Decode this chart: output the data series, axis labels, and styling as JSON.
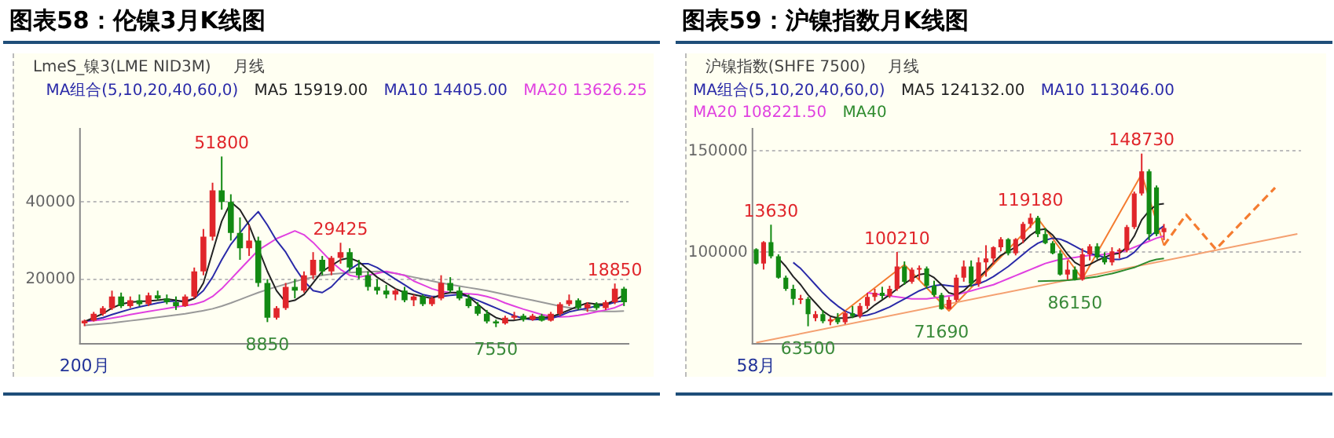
{
  "chart_data": [
    {
      "type": "candlestick",
      "title": "图表58：伦镍3月K线图",
      "legend_title": "MA组合(5,10,20,40,60,0)",
      "legend": "top right",
      "grid": "y",
      "annotations": [
        "LmeS_镍3(LME NID3M)",
        "月线",
        {
          "text": "51800",
          "y": 51800
        },
        {
          "text": "29425",
          "y": 29425
        },
        {
          "text": "18850",
          "y": 18850
        },
        {
          "text": "8850",
          "y": 8850
        },
        {
          "text": "7550",
          "y": 7550
        }
      ],
      "categories": [
        "200月",
        null,
        null,
        null,
        null,
        null,
        null,
        null,
        null,
        null,
        null,
        null,
        null,
        null,
        null,
        null,
        null,
        null,
        null,
        null,
        null,
        null,
        null,
        null,
        null,
        null,
        null,
        null,
        null,
        null,
        null,
        null,
        null,
        null,
        null,
        null,
        null,
        null,
        null,
        null,
        null,
        null,
        null,
        null,
        null,
        null,
        null,
        null,
        null,
        null,
        null,
        null,
        null,
        null,
        null,
        null,
        null,
        null,
        null,
        null
      ],
      "ohlc": [
        [
          8500,
          9500,
          7800,
          9200
        ],
        [
          9200,
          11500,
          9000,
          11000
        ],
        [
          11000,
          13000,
          10500,
          12500
        ],
        [
          12500,
          17000,
          12000,
          15500
        ],
        [
          15500,
          16500,
          12500,
          13000
        ],
        [
          13000,
          15500,
          12500,
          14500
        ],
        [
          14500,
          16000,
          13000,
          13500
        ],
        [
          13500,
          16500,
          13000,
          15800
        ],
        [
          15800,
          17000,
          14500,
          15000
        ],
        [
          15000,
          16000,
          13500,
          14000
        ],
        [
          14000,
          15500,
          12000,
          13000
        ],
        [
          13000,
          16000,
          12800,
          15500
        ],
        [
          15500,
          23000,
          15000,
          22000
        ],
        [
          22000,
          33000,
          21000,
          31000
        ],
        [
          31000,
          45000,
          30000,
          43000
        ],
        [
          43000,
          51800,
          38000,
          40000
        ],
        [
          40000,
          42000,
          30000,
          32000
        ],
        [
          32000,
          36000,
          25000,
          28000
        ],
        [
          28000,
          34000,
          26000,
          30000
        ],
        [
          30000,
          31000,
          18000,
          19000
        ],
        [
          19000,
          20000,
          8850,
          10000
        ],
        [
          10000,
          13000,
          9500,
          12500
        ],
        [
          12500,
          19000,
          12000,
          18000
        ],
        [
          18000,
          20000,
          15000,
          17000
        ],
        [
          17000,
          22000,
          16500,
          21000
        ],
        [
          21000,
          27000,
          20000,
          25000
        ],
        [
          25000,
          26000,
          21000,
          22000
        ],
        [
          22000,
          26000,
          21000,
          25500
        ],
        [
          25500,
          29425,
          24000,
          27000
        ],
        [
          27000,
          28000,
          22000,
          23000
        ],
        [
          23000,
          25000,
          20000,
          21000
        ],
        [
          21000,
          22000,
          17000,
          18000
        ],
        [
          18000,
          20000,
          16000,
          17000
        ],
        [
          17000,
          18500,
          15000,
          16000
        ],
        [
          16000,
          17500,
          14500,
          17000
        ],
        [
          17000,
          18000,
          14000,
          14500
        ],
        [
          14500,
          16000,
          13000,
          15500
        ],
        [
          15500,
          16000,
          13000,
          13500
        ],
        [
          13500,
          15500,
          13000,
          15000
        ],
        [
          15000,
          21000,
          14500,
          19000
        ],
        [
          19000,
          20500,
          16500,
          17000
        ],
        [
          17000,
          18000,
          14500,
          15000
        ],
        [
          15000,
          16000,
          12500,
          13000
        ],
        [
          13000,
          14000,
          10500,
          11000
        ],
        [
          11000,
          12000,
          8500,
          9000
        ],
        [
          9000,
          9500,
          7550,
          8500
        ],
        [
          8500,
          10500,
          8200,
          10000
        ],
        [
          10000,
          11500,
          9500,
          10500
        ],
        [
          10500,
          11000,
          9000,
          9500
        ],
        [
          9500,
          11000,
          9200,
          10500
        ],
        [
          10500,
          11000,
          9000,
          9200
        ],
        [
          9200,
          11500,
          9000,
          11000
        ],
        [
          11000,
          14000,
          10500,
          13500
        ],
        [
          13500,
          16000,
          13000,
          14500
        ],
        [
          14500,
          15000,
          12000,
          12500
        ],
        [
          12500,
          14000,
          11500,
          13500
        ],
        [
          13500,
          14000,
          12000,
          12500
        ],
        [
          12500,
          14500,
          12000,
          14000
        ],
        [
          14000,
          18850,
          13500,
          17500
        ],
        [
          17500,
          18000,
          13000,
          14000
        ]
      ],
      "series": [
        {
          "type": "line",
          "name": "MA5 15919.00",
          "color": "#222222",
          "values": [
            9000,
            10000,
            11000,
            12500,
            13500,
            14000,
            14200,
            14300,
            14500,
            14800,
            14500,
            14000,
            15000,
            19000,
            27000,
            35000,
            40000,
            38000,
            34000,
            28000,
            22000,
            17000,
            14000,
            14500,
            16000,
            19000,
            22000,
            23500,
            25000,
            25500,
            24500,
            22500,
            20500,
            19000,
            17500,
            16500,
            16000,
            15500,
            15000,
            16000,
            16500,
            16500,
            15500,
            13500,
            11500,
            10000,
            9300,
            9300,
            9700,
            10000,
            10000,
            10200,
            11000,
            12000,
            13000,
            13800,
            13500,
            13500,
            14500,
            15900
          ]
        },
        {
          "type": "line",
          "name": "MA10 14405.00",
          "color": "#2a2aa8",
          "values": [
            9000,
            9500,
            10000,
            10800,
            11500,
            12200,
            12800,
            13300,
            13800,
            14200,
            14300,
            14300,
            15000,
            17000,
            20500,
            25000,
            29000,
            32000,
            35000,
            37500,
            34000,
            30000,
            27000,
            23000,
            19500,
            17000,
            16500,
            18000,
            20500,
            22500,
            24000,
            24000,
            23000,
            21500,
            20000,
            18500,
            17000,
            16000,
            15500,
            15500,
            15800,
            16000,
            15500,
            14500,
            13500,
            12500,
            11500,
            10500,
            9800,
            9500,
            9600,
            9800,
            10500,
            11500,
            12000,
            12500,
            13000,
            13300,
            14000,
            14400
          ]
        },
        {
          "type": "line",
          "name": "MA20 13626.25",
          "color": "#e040e0",
          "values": [
            9000,
            9200,
            9500,
            9900,
            10300,
            10800,
            11200,
            11600,
            12000,
            12400,
            12800,
            13100,
            13500,
            14200,
            15500,
            17500,
            20000,
            22500,
            25000,
            27500,
            29000,
            30500,
            31500,
            32500,
            31500,
            29500,
            27000,
            24500,
            22500,
            21000,
            20500,
            21000,
            21500,
            22000,
            21500,
            21000,
            19500,
            18500,
            17500,
            16800,
            16500,
            16300,
            16200,
            16000,
            15500,
            14800,
            13800,
            13000,
            12200,
            11500,
            10800,
            10400,
            10200,
            10300,
            10600,
            11000,
            11500,
            12000,
            12600,
            13600
          ]
        },
        {
          "type": "line",
          "color": "#999999",
          "values": [
            8000,
            8200,
            8400,
            8600,
            8900,
            9200,
            9500,
            9800,
            10100,
            10400,
            10700,
            11000,
            11400,
            11800,
            12300,
            13000,
            13800,
            14700,
            15600,
            16500,
            17300,
            18000,
            18700,
            19400,
            20000,
            20500,
            21000,
            21300,
            21500,
            21700,
            21800,
            21900,
            22000,
            21800,
            21500,
            21000,
            20500,
            20000,
            19500,
            19000,
            18600,
            18200,
            17800,
            17400,
            17000,
            16500,
            16000,
            15500,
            15000,
            14500,
            14000,
            13500,
            13000,
            12600,
            12200,
            11900,
            11700,
            11600,
            11600,
            11700
          ]
        }
      ],
      "ylim": [
        3300,
        59000
      ],
      "yticks": [
        20000,
        40000
      ]
    },
    {
      "type": "candlestick",
      "title": "图表59：沪镍指数月K线图",
      "legend_title": "MA组合(5,10,20,40,60,0)",
      "legend": "top left",
      "grid": "y",
      "annotations": [
        "沪镍指数(SHFE 7500)",
        "月线",
        {
          "text": "13630",
          "y": 113630
        },
        {
          "text": "100210",
          "y": 100210
        },
        {
          "text": "119180",
          "y": 119180
        },
        {
          "text": "148730",
          "y": 148730
        },
        {
          "text": "63500",
          "y": 63500
        },
        {
          "text": "71690",
          "y": 71690
        },
        {
          "text": "86150",
          "y": 86150
        }
      ],
      "categories": [
        "58月",
        null,
        null,
        null,
        null,
        null,
        null,
        null,
        null,
        null,
        null,
        null,
        null,
        null,
        null,
        null,
        null,
        null,
        null,
        null,
        null,
        null,
        null,
        null,
        null,
        null,
        null,
        null,
        null,
        null,
        null,
        null,
        null,
        null,
        null,
        null,
        null,
        null,
        null,
        null,
        null,
        null,
        null,
        null,
        null,
        null,
        null,
        null,
        null,
        null,
        null,
        null,
        null,
        null,
        null,
        null,
        null,
        null,
        null,
        null,
        null,
        null,
        null,
        null,
        null,
        null,
        null,
        null,
        null,
        null,
        null,
        null,
        null,
        null
      ],
      "ohlc": [
        [
          101500,
          102000,
          94000,
          94500
        ],
        [
          94500,
          105500,
          91500,
          105000
        ],
        [
          105000,
          113630,
          97000,
          98000
        ],
        [
          98000,
          99000,
          87000,
          87500
        ],
        [
          87500,
          88500,
          81000,
          82000
        ],
        [
          82000,
          84000,
          74000,
          77000
        ],
        [
          76500,
          79000,
          74500,
          77000
        ],
        [
          77000,
          78000,
          63500,
          69500
        ],
        [
          67500,
          71000,
          66000,
          69500
        ],
        [
          69500,
          71500,
          65000,
          66000
        ],
        [
          66000,
          68000,
          64000,
          67000
        ],
        [
          67500,
          70000,
          64500,
          65500
        ],
        [
          65500,
          71000,
          64500,
          70000
        ],
        [
          70000,
          73500,
          67500,
          68500
        ],
        [
          68500,
          75000,
          67500,
          73500
        ],
        [
          73500,
          80000,
          72000,
          78000
        ],
        [
          78000,
          82000,
          76000,
          80000
        ],
        [
          80000,
          83000,
          77000,
          78500
        ],
        [
          78500,
          83500,
          77500,
          82000
        ],
        [
          82000,
          100210,
          81000,
          93000
        ],
        [
          93000,
          95500,
          84000,
          85500
        ],
        [
          85500,
          92500,
          84500,
          91500
        ],
        [
          91500,
          93500,
          86500,
          92000
        ],
        [
          92000,
          93000,
          82000,
          83500
        ],
        [
          83500,
          86000,
          78000,
          79000
        ],
        [
          79000,
          80000,
          71690,
          72000
        ],
        [
          72000,
          78000,
          72000,
          76500
        ],
        [
          76500,
          89000,
          75500,
          87500
        ],
        [
          87500,
          96000,
          85500,
          93000
        ],
        [
          93000,
          96000,
          83000,
          84500
        ],
        [
          84500,
          97500,
          83000,
          95000
        ],
        [
          95000,
          103500,
          88000,
          97000
        ],
        [
          97000,
          103000,
          94000,
          102500
        ],
        [
          102500,
          107500,
          100500,
          106500
        ],
        [
          106500,
          107000,
          98500,
          99500
        ],
        [
          99500,
          107000,
          98500,
          106500
        ],
        [
          106500,
          115000,
          104500,
          114000
        ],
        [
          114000,
          119180,
          112000,
          117000
        ],
        [
          117000,
          118000,
          107500,
          109000
        ],
        [
          109000,
          112000,
          104000,
          104500
        ],
        [
          104500,
          105500,
          99000,
          99500
        ],
        [
          99500,
          101000,
          88500,
          89000
        ],
        [
          89000,
          96000,
          86500,
          91500
        ],
        [
          91500,
          93000,
          86150,
          86500
        ],
        [
          86500,
          102000,
          86000,
          99000
        ],
        [
          99000,
          104000,
          96000,
          103000
        ],
        [
          103000,
          104500,
          96500,
          97500
        ],
        [
          97500,
          100000,
          94000,
          95000
        ],
        [
          95000,
          102500,
          93500,
          100500
        ],
        [
          100500,
          102000,
          97000,
          101000
        ],
        [
          101000,
          113500,
          100000,
          112500
        ],
        [
          112500,
          130000,
          111500,
          129000
        ],
        [
          129000,
          148730,
          128000,
          140000
        ],
        [
          140000,
          141000,
          106000,
          109000
        ],
        [
          132000,
          133000,
          108000,
          109000
        ],
        [
          110000,
          114000,
          106000,
          112000
        ],
        null,
        null,
        null,
        null,
        null,
        null,
        null,
        null,
        null,
        null,
        null,
        null,
        null,
        null,
        null,
        null,
        null,
        null
      ],
      "series": [
        {
          "type": "line",
          "name": "MA5 124132.00",
          "color": "#222222",
          "values": [
            null,
            null,
            null,
            97000,
            93000,
            88000,
            84000,
            79000,
            75000,
            71000,
            68500,
            67500,
            67500,
            68000,
            69000,
            71000,
            74000,
            76500,
            79000,
            82000,
            84500,
            87000,
            89000,
            89500,
            87500,
            84000,
            80000,
            79000,
            81000,
            84500,
            87500,
            91000,
            95000,
            98500,
            100500,
            102500,
            105000,
            108500,
            111000,
            111500,
            108500,
            104000,
            99000,
            95000,
            93000,
            94000,
            96000,
            97500,
            99000,
            99500,
            102500,
            108000,
            116000,
            120500,
            123500,
            124000,
            null,
            null,
            null,
            null,
            null,
            null,
            null,
            null,
            null,
            null,
            null,
            null,
            null,
            null,
            null,
            null,
            null,
            null
          ]
        },
        {
          "type": "line",
          "name": "MA10 113046.00",
          "color": "#2a2aa8",
          "values": [
            null,
            null,
            null,
            null,
            null,
            95000,
            92000,
            88000,
            84000,
            80000,
            76500,
            73500,
            71000,
            69500,
            68500,
            69000,
            70000,
            71500,
            73000,
            75000,
            77000,
            79000,
            81000,
            82500,
            83500,
            84000,
            83500,
            83000,
            83000,
            83500,
            84500,
            86000,
            88000,
            90500,
            93000,
            96000,
            99000,
            102000,
            104500,
            106000,
            107000,
            106500,
            105000,
            103000,
            101000,
            99500,
            98500,
            97500,
            96500,
            96500,
            97500,
            100000,
            104000,
            107500,
            110500,
            113000,
            null,
            null,
            null,
            null,
            null,
            null,
            null,
            null,
            null,
            null,
            null,
            null,
            null,
            null,
            null,
            null,
            null,
            null
          ]
        },
        {
          "type": "line",
          "name": "MA20 108221.50",
          "color": "#e040e0",
          "values": [
            null,
            null,
            null,
            null,
            null,
            null,
            null,
            null,
            null,
            null,
            null,
            null,
            null,
            null,
            null,
            80000,
            79500,
            79000,
            78500,
            78000,
            77500,
            77000,
            77000,
            77000,
            77500,
            78000,
            78500,
            79000,
            80000,
            81000,
            82000,
            83000,
            84000,
            85500,
            87000,
            88500,
            90000,
            91500,
            93000,
            94500,
            95500,
            96500,
            97000,
            97500,
            98000,
            98500,
            98500,
            99000,
            99500,
            100000,
            101000,
            102500,
            104000,
            105500,
            107000,
            108000,
            null,
            null,
            null,
            null,
            null,
            null,
            null,
            null,
            null,
            null,
            null,
            null,
            null,
            null,
            null,
            null,
            null,
            null
          ]
        },
        {
          "type": "line",
          "name": "MA40",
          "color": "#2e8b2e",
          "values": [
            null,
            null,
            null,
            null,
            null,
            null,
            null,
            null,
            null,
            null,
            null,
            null,
            null,
            null,
            null,
            null,
            null,
            null,
            null,
            null,
            null,
            null,
            null,
            null,
            null,
            null,
            null,
            null,
            null,
            null,
            null,
            null,
            null,
            null,
            null,
            null,
            null,
            null,
            85700,
            85800,
            85900,
            86000,
            86200,
            86500,
            87000,
            87500,
            88000,
            88800,
            89500,
            90500,
            91500,
            92500,
            94000,
            95500,
            96500,
            97000,
            null,
            null,
            null,
            null,
            null,
            null,
            null,
            null,
            null,
            null,
            null,
            null,
            null,
            null,
            null,
            null,
            null,
            null
          ]
        },
        {
          "type": "line",
          "color": "#f4a070",
          "values": [
            55400,
            null,
            null,
            null,
            null,
            null,
            null,
            null,
            null,
            null,
            null,
            null,
            null,
            null,
            null,
            null,
            null,
            null,
            null,
            null,
            null,
            null,
            null,
            null,
            null,
            null,
            null,
            null,
            null,
            null,
            null,
            null,
            null,
            null,
            null,
            null,
            null,
            null,
            null,
            null,
            null,
            null,
            null,
            null,
            null,
            null,
            null,
            null,
            null,
            null,
            null,
            null,
            null,
            null,
            null,
            null,
            null,
            null,
            null,
            null,
            null,
            null,
            null,
            null,
            null,
            null,
            null,
            null,
            null,
            null,
            null,
            null,
            null,
            109100
          ]
        },
        {
          "type": "line",
          "color": "#f47c30",
          "values": [
            null,
            null,
            null,
            null,
            null,
            null,
            null,
            null,
            null,
            null,
            65400,
            null,
            null,
            null,
            null,
            null,
            null,
            null,
            null,
            null,
            93900,
            null,
            null,
            null,
            null,
            null,
            71100,
            null,
            null,
            null,
            null,
            null,
            null,
            null,
            null,
            null,
            null,
            null,
            116700,
            null,
            null,
            null,
            null,
            null,
            86900,
            null,
            null,
            null,
            null,
            null,
            null,
            null,
            138600,
            null,
            null,
            103400,
            null,
            null,
            null,
            null,
            null,
            null,
            null,
            null,
            null,
            null,
            null,
            null,
            null,
            null,
            null,
            null,
            null,
            null
          ]
        },
        {
          "type": "line",
          "color": "#f47c30",
          "line_style": "dashed",
          "values": [
            null,
            null,
            null,
            null,
            null,
            null,
            null,
            null,
            null,
            null,
            null,
            null,
            null,
            null,
            null,
            null,
            null,
            null,
            null,
            null,
            null,
            null,
            null,
            null,
            null,
            null,
            null,
            null,
            null,
            null,
            null,
            null,
            null,
            null,
            null,
            null,
            null,
            null,
            null,
            null,
            null,
            null,
            null,
            null,
            null,
            null,
            null,
            null,
            null,
            null,
            null,
            null,
            null,
            null,
            null,
            103400,
            null,
            null,
            118600,
            null,
            null,
            null,
            101500,
            null,
            null,
            null,
            null,
            null,
            null,
            null,
            131900,
            null,
            null,
            null
          ]
        }
      ],
      "ylim": [
        55000,
        161000
      ],
      "yticks": [
        100000,
        150000
      ]
    }
  ]
}
